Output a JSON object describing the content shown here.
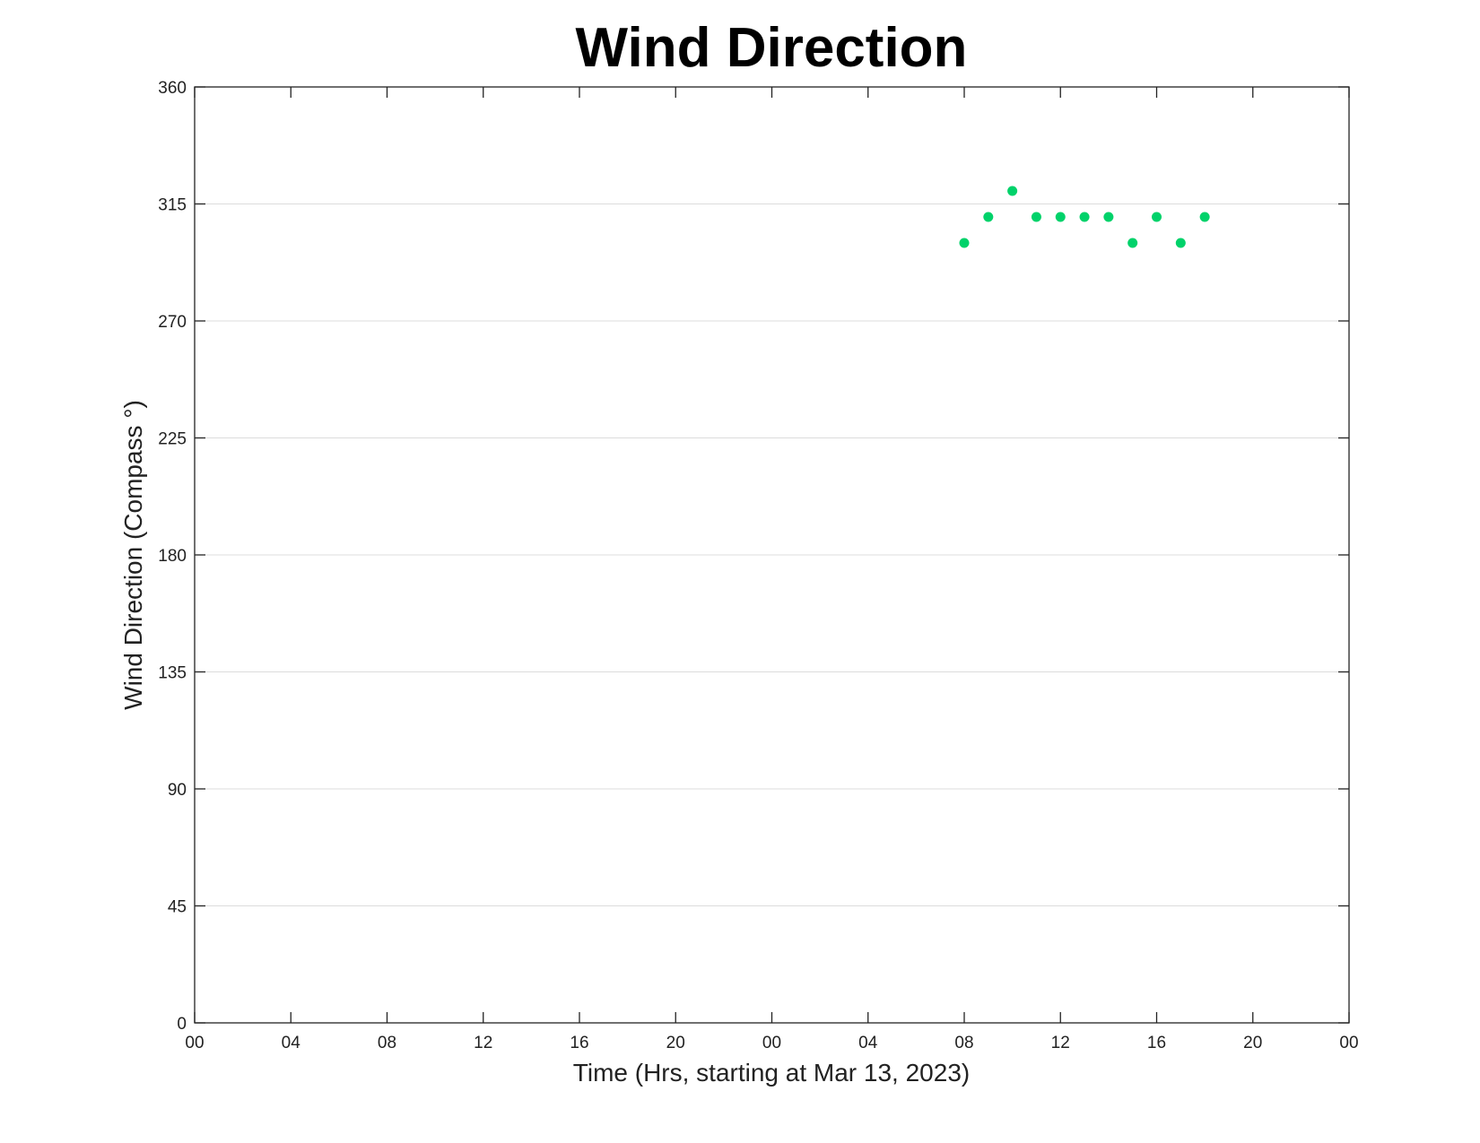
{
  "chart_data": {
    "type": "scatter",
    "title": "Wind Direction",
    "xlabel": "Time (Hrs, starting at Mar 13, 2023)",
    "ylabel": "Wind Direction (Compass °)",
    "x_unit": "hours",
    "xlim": [
      0,
      48
    ],
    "ylim": [
      0,
      360
    ],
    "x_ticks": [
      0,
      4,
      8,
      12,
      16,
      20,
      24,
      28,
      32,
      36,
      40,
      44,
      48
    ],
    "x_tick_labels": [
      "00",
      "04",
      "08",
      "12",
      "16",
      "20",
      "00",
      "04",
      "08",
      "12",
      "16",
      "20",
      "00"
    ],
    "y_ticks": [
      0,
      45,
      90,
      135,
      180,
      225,
      270,
      315,
      360
    ],
    "y_tick_labels": [
      "0",
      "45",
      "90",
      "135",
      "180",
      "225",
      "270",
      "315",
      "360"
    ],
    "grid": "horizontal",
    "marker_color": "#00d26a",
    "series": [
      {
        "x": [
          32,
          33,
          34,
          35,
          36,
          37,
          38,
          39,
          40,
          41,
          42
        ],
        "y": [
          300,
          310,
          320,
          310,
          310,
          310,
          310,
          300,
          310,
          300,
          310
        ]
      }
    ]
  }
}
